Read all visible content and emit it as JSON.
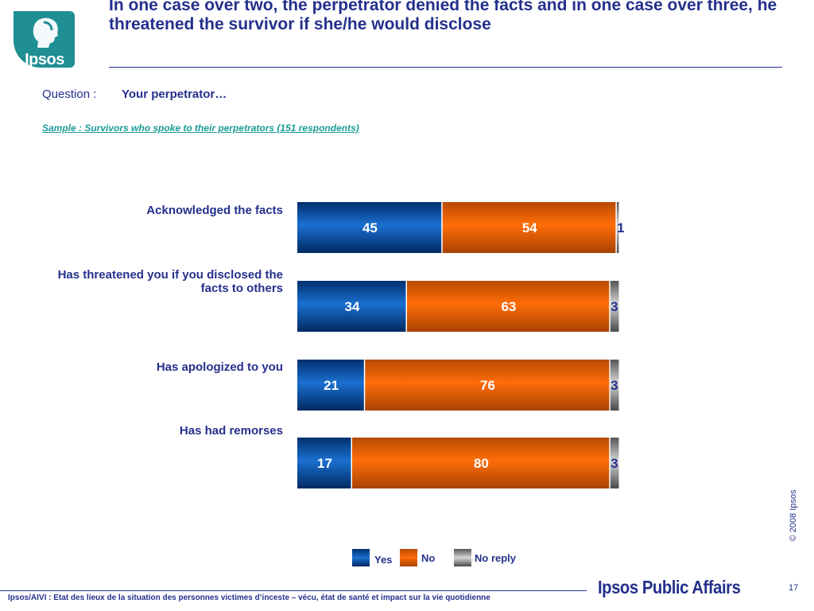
{
  "logo": {
    "text": "Ipsos",
    "icon": "profile-head-icon",
    "color": "#1f8f94"
  },
  "title": "In one case over two, the perpetrator denied the facts and in one case over three, he threatened the survivor if she/he would disclose",
  "question": {
    "label": "Question :",
    "text": "Your perpetrator…"
  },
  "sample": "Sample : Survivors who spoke to their perpetrators (151 respondents)",
  "chart_data": {
    "type": "bar",
    "orientation": "horizontal",
    "stacked": true,
    "categories": [
      "Acknowledged the facts",
      "Has threatened you if you disclosed the facts to others",
      "Has apologized to you",
      "Has had remorses"
    ],
    "series": [
      {
        "name": "Yes",
        "values": [
          45,
          34,
          21,
          17
        ],
        "color": "#0b4f9e"
      },
      {
        "name": "No",
        "values": [
          54,
          63,
          76,
          80
        ],
        "color": "#f06a05"
      },
      {
        "name": "No reply",
        "values": [
          1,
          3,
          3,
          3
        ],
        "color": "#8a8a8a"
      }
    ],
    "legend_position": "bottom",
    "unit": "%"
  },
  "copyright": "© 2008 Ipsos",
  "footer": {
    "text": "Ipsos/AIVI : Etat des lieux de la situation des personnes victimes d’inceste – vécu, état de santé et impact sur la vie quotidienne",
    "brand": "Ipsos Public Affairs",
    "page_number": "17"
  }
}
